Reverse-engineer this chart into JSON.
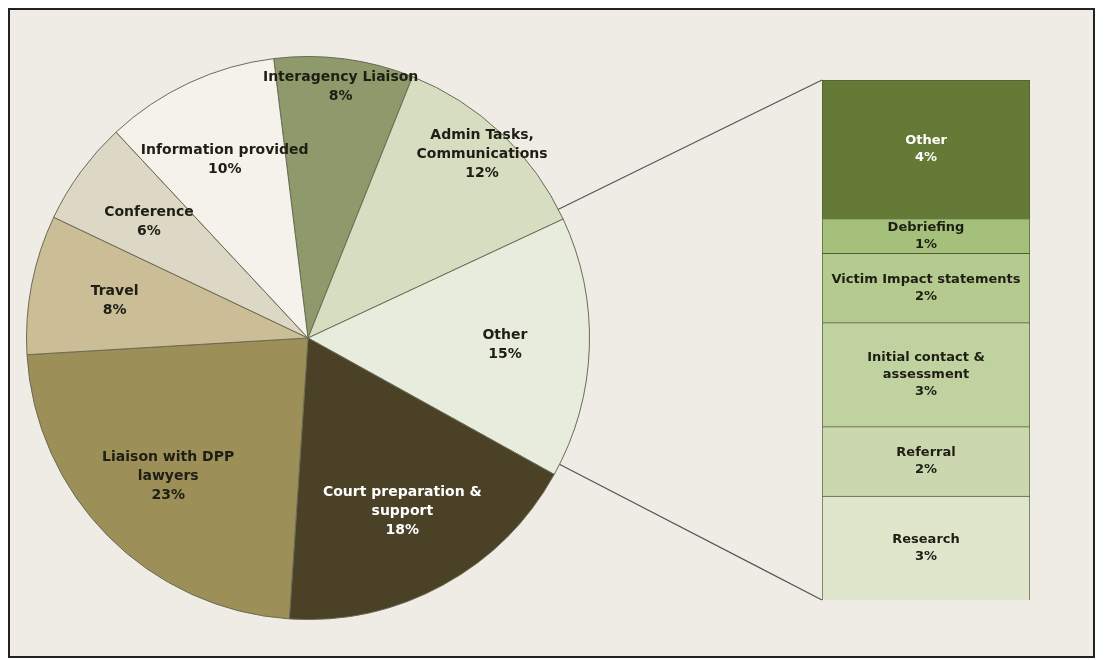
{
  "chart_data": [
    {
      "type": "pie",
      "categories": [
        "Interagency Liaison",
        "Admin Tasks, Communications",
        "Other",
        "Court preparation & support",
        "Liaison with DPP lawyers",
        "Travel",
        "Conference",
        "Information provided"
      ],
      "values": [
        8,
        12,
        15,
        18,
        23,
        8,
        6,
        10
      ],
      "value_labels": [
        "8%",
        "12%",
        "15%",
        "18%",
        "23%",
        "8%",
        "6%",
        "10%"
      ],
      "colors": [
        "#8e9a6c",
        "#d6ddc0",
        "#e8ecdc",
        "#4a4126",
        "#9c8f58",
        "#cbbd96",
        "#ddd8c6",
        "#f4f2ea"
      ]
    },
    {
      "type": "bar",
      "stacked": true,
      "categories": [
        null
      ],
      "ylim": [
        0,
        15
      ],
      "tick_labels": false,
      "series": [
        {
          "name": "Research",
          "color": "#dfe6cc",
          "values": [
            3
          ],
          "value_labels": [
            "3%"
          ]
        },
        {
          "name": "Referral",
          "color": "#cbd8af",
          "values": [
            2
          ],
          "value_labels": [
            "2%"
          ]
        },
        {
          "name": "Initial contact & assessment",
          "color": "#c0d2a0",
          "values": [
            3
          ],
          "value_labels": [
            "3%"
          ]
        },
        {
          "name": "Victim Impact statements",
          "color": "#b5ca8f",
          "values": [
            2
          ],
          "value_labels": [
            "2%"
          ]
        },
        {
          "name": "Debriefing",
          "color": "#a5c07a",
          "values": [
            1
          ],
          "value_labels": [
            "1%"
          ]
        },
        {
          "name": "Other",
          "color": "#667a37",
          "values": [
            4
          ],
          "value_labels": [
            "4%"
          ]
        }
      ]
    }
  ]
}
